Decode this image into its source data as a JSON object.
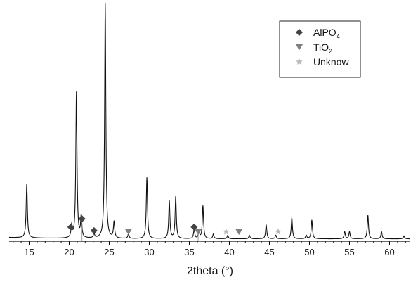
{
  "chart_data": {
    "type": "line",
    "title": "",
    "xlabel": "2theta (°)",
    "ylabel": "",
    "xlim": [
      12.5,
      62.5
    ],
    "ylim": [
      0,
      1
    ],
    "grid": false,
    "legend_position": "top-right",
    "x_ticks": [
      15,
      20,
      25,
      30,
      35,
      40,
      45,
      50,
      55,
      60
    ],
    "colors": {
      "trace": "#111111",
      "alpo4": "#444444",
      "tio2": "#808080",
      "unknow": "#b8b8b8"
    },
    "series": [
      {
        "kind": "xrd-peaks",
        "baseline": 0.01,
        "peaks": [
          {
            "x": 14.7,
            "h": 0.23
          },
          {
            "x": 20.3,
            "h": 0.05
          },
          {
            "x": 20.9,
            "h": 0.62
          },
          {
            "x": 21.5,
            "h": 0.09
          },
          {
            "x": 23.1,
            "h": 0.02
          },
          {
            "x": 24.5,
            "h": 1.0
          },
          {
            "x": 25.6,
            "h": 0.07
          },
          {
            "x": 27.4,
            "h": 0.02
          },
          {
            "x": 29.7,
            "h": 0.26
          },
          {
            "x": 32.5,
            "h": 0.16
          },
          {
            "x": 33.3,
            "h": 0.18
          },
          {
            "x": 35.6,
            "h": 0.04
          },
          {
            "x": 36.2,
            "h": 0.03
          },
          {
            "x": 36.7,
            "h": 0.14
          },
          {
            "x": 38.0,
            "h": 0.02
          },
          {
            "x": 39.8,
            "h": 0.015
          },
          {
            "x": 42.5,
            "h": 0.015
          },
          {
            "x": 44.6,
            "h": 0.06
          },
          {
            "x": 45.8,
            "h": 0.015
          },
          {
            "x": 47.8,
            "h": 0.09
          },
          {
            "x": 49.6,
            "h": 0.015
          },
          {
            "x": 50.3,
            "h": 0.08
          },
          {
            "x": 54.4,
            "h": 0.03
          },
          {
            "x": 55.0,
            "h": 0.03
          },
          {
            "x": 57.3,
            "h": 0.1
          },
          {
            "x": 59.0,
            "h": 0.03
          },
          {
            "x": 61.8,
            "h": 0.012
          }
        ]
      }
    ],
    "markers": [
      {
        "name": "AlPO4",
        "symbol": "diamond",
        "points": [
          {
            "x": 20.2,
            "y": 0.06
          },
          {
            "x": 21.6,
            "y": 0.095
          },
          {
            "x": 23.1,
            "y": 0.045
          },
          {
            "x": 35.6,
            "y": 0.06
          }
        ]
      },
      {
        "name": "TiO2",
        "symbol": "triangle-down",
        "points": [
          {
            "x": 27.4,
            "y": 0.04
          },
          {
            "x": 36.1,
            "y": 0.04
          },
          {
            "x": 41.2,
            "y": 0.04
          }
        ]
      },
      {
        "name": "Unknow",
        "symbol": "star",
        "points": [
          {
            "x": 39.6,
            "y": 0.04
          },
          {
            "x": 46.1,
            "y": 0.04
          }
        ]
      }
    ],
    "legend": [
      {
        "label": "AlPO",
        "sub": "4",
        "symbol": "diamond"
      },
      {
        "label": "TiO",
        "sub": "2",
        "symbol": "triangle-down"
      },
      {
        "label": "Unknow",
        "sub": "",
        "symbol": "star"
      }
    ]
  }
}
